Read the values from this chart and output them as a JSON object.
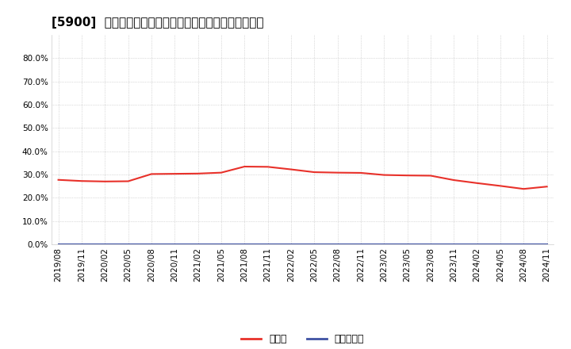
{
  "title": "[5900]  現預金、有利子負債の総資産に対する比率の推移",
  "x_labels": [
    "2019/08",
    "2019/11",
    "2020/02",
    "2020/05",
    "2020/08",
    "2020/11",
    "2021/02",
    "2021/05",
    "2021/08",
    "2021/11",
    "2022/02",
    "2022/05",
    "2022/08",
    "2022/11",
    "2023/02",
    "2023/05",
    "2023/08",
    "2023/11",
    "2024/02",
    "2024/05",
    "2024/08",
    "2024/11"
  ],
  "cash_values": [
    0.277,
    0.272,
    0.27,
    0.271,
    0.302,
    0.303,
    0.304,
    0.308,
    0.334,
    0.333,
    0.322,
    0.31,
    0.308,
    0.307,
    0.298,
    0.296,
    0.295,
    0.276,
    0.263,
    0.251,
    0.238,
    0.248
  ],
  "debt_values": [
    0.0,
    0.0,
    0.0,
    0.0,
    0.0,
    0.0,
    0.0,
    0.0,
    0.0,
    0.0,
    0.0,
    0.0,
    0.0,
    0.0,
    0.0,
    0.0,
    0.0,
    0.0,
    0.0,
    0.0,
    0.0,
    0.0
  ],
  "cash_color": "#e8312a",
  "debt_color": "#3f52a3",
  "background_color": "#ffffff",
  "plot_bg_color": "#ffffff",
  "grid_color": "#aaaaaa",
  "ylim": [
    0.0,
    0.9
  ],
  "yticks": [
    0.0,
    0.1,
    0.2,
    0.3,
    0.4,
    0.5,
    0.6,
    0.7,
    0.8
  ],
  "legend_cash": "現預金",
  "legend_debt": "有利子負債",
  "title_fontsize": 11,
  "axis_fontsize": 7.5,
  "legend_fontsize": 9
}
